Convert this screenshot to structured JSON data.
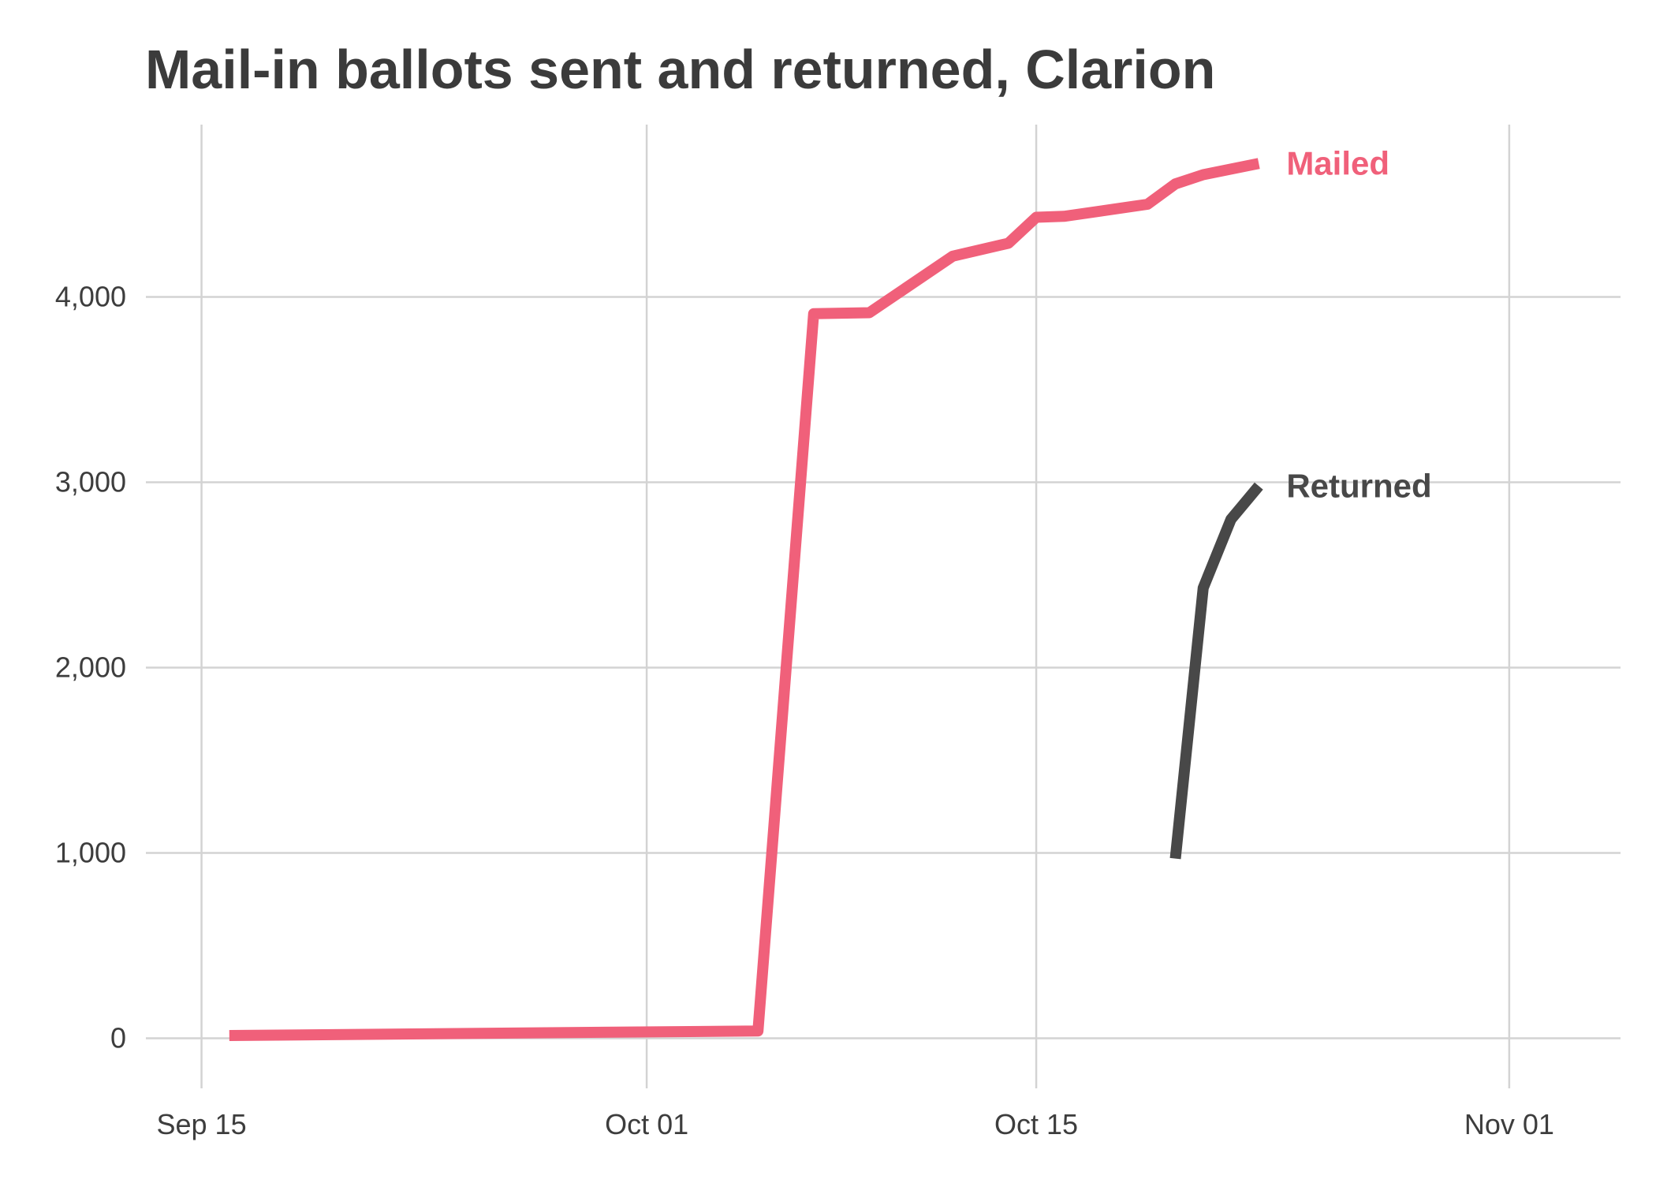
{
  "chart_data": {
    "type": "line",
    "title": "Mail-in ballots sent and returned, Clarion",
    "xlabel": "",
    "ylabel": "",
    "x_ticks": [
      {
        "date": "2020-09-15",
        "label": "Sep 15"
      },
      {
        "date": "2020-10-01",
        "label": "Oct 01"
      },
      {
        "date": "2020-10-15",
        "label": "Oct 15"
      },
      {
        "date": "2020-11-01",
        "label": "Nov 01"
      }
    ],
    "y_ticks": [
      {
        "value": 0,
        "label": "0"
      },
      {
        "value": 1000,
        "label": "1,000"
      },
      {
        "value": 2000,
        "label": "2,000"
      },
      {
        "value": 3000,
        "label": "3,000"
      },
      {
        "value": 4000,
        "label": "4,000"
      }
    ],
    "xlim": [
      "2020-09-13",
      "2020-11-05"
    ],
    "ylim": [
      -270,
      4930
    ],
    "grid": true,
    "legend": "direct labels at line ends",
    "series": [
      {
        "name": "Mailed",
        "color": "#f0607a",
        "points": [
          {
            "x": "2020-09-16",
            "y": 15
          },
          {
            "x": "2020-10-05",
            "y": 40
          },
          {
            "x": "2020-10-07",
            "y": 3910
          },
          {
            "x": "2020-10-09",
            "y": 3915
          },
          {
            "x": "2020-10-12",
            "y": 4220
          },
          {
            "x": "2020-10-14",
            "y": 4290
          },
          {
            "x": "2020-10-15",
            "y": 4430
          },
          {
            "x": "2020-10-16",
            "y": 4435
          },
          {
            "x": "2020-10-19",
            "y": 4500
          },
          {
            "x": "2020-10-20",
            "y": 4610
          },
          {
            "x": "2020-10-21",
            "y": 4660
          },
          {
            "x": "2020-10-22",
            "y": 4690
          },
          {
            "x": "2020-10-23",
            "y": 4720
          }
        ]
      },
      {
        "name": "Returned",
        "color": "#484848",
        "points": [
          {
            "x": "2020-10-20",
            "y": 970
          },
          {
            "x": "2020-10-21",
            "y": 2430
          },
          {
            "x": "2020-10-22",
            "y": 2800
          },
          {
            "x": "2020-10-23",
            "y": 2980
          }
        ]
      }
    ]
  },
  "colors": {
    "grid": "#d3d3d3",
    "title_text": "#3b3b3b",
    "tick_text": "#3d3d3d",
    "mailed": "#f0607a",
    "returned": "#484848"
  }
}
